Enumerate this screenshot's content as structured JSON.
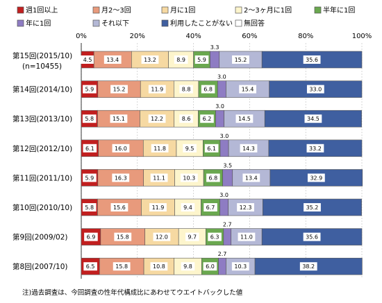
{
  "chart_data": {
    "type": "bar",
    "orientation": "horizontal",
    "stacked": true,
    "percent": true,
    "xlim": [
      0,
      100
    ],
    "x_ticks": [
      "0%",
      "20%",
      "40%",
      "60%",
      "80%",
      "100%"
    ],
    "legend_placement": "top",
    "categories": [
      [
        "第15回(2015/10)",
        "(n=10455)"
      ],
      [
        "第14回(2014/10)"
      ],
      [
        "第13回(2013/10)"
      ],
      [
        "第12回(2012/10)"
      ],
      [
        "第11回(2011/10)"
      ],
      [
        "第10回(2010/10)"
      ],
      [
        "第9回(2009/02)"
      ],
      [
        "第8回(2007/10)"
      ]
    ],
    "series": [
      {
        "name": "週1回以上",
        "color": "#c21f1f",
        "values": [
          4.5,
          5.9,
          5.8,
          6.1,
          5.9,
          5.8,
          6.9,
          6.5
        ]
      },
      {
        "name": "月2～3回",
        "color": "#e89a7c",
        "values": [
          13.4,
          15.2,
          15.1,
          16.0,
          16.3,
          15.6,
          15.8,
          15.8
        ]
      },
      {
        "name": "月に1回",
        "color": "#f6d9a2",
        "values": [
          13.2,
          11.9,
          12.2,
          11.8,
          11.1,
          11.9,
          12.0,
          10.8
        ]
      },
      {
        "name": "2～3ヶ月に1回",
        "color": "#fdf5cc",
        "values": [
          8.9,
          8.8,
          8.6,
          9.5,
          10.3,
          9.4,
          9.7,
          9.8
        ]
      },
      {
        "name": "半年に1回",
        "color": "#6aa84f",
        "values": [
          5.9,
          6.8,
          6.2,
          6.1,
          6.8,
          6.7,
          6.3,
          6.0
        ]
      },
      {
        "name": "年に1回",
        "color": "#8e7cc3",
        "values": [
          3.3,
          3.0,
          3.0,
          3.0,
          3.5,
          3.0,
          2.7,
          2.7
        ]
      },
      {
        "name": "それ以下",
        "color": "#b4b8d6",
        "values": [
          15.2,
          15.4,
          14.5,
          14.3,
          13.4,
          12.3,
          11.0,
          10.3
        ]
      },
      {
        "name": "利用したことがない",
        "color": "#3f5fa0",
        "values": [
          35.6,
          33.0,
          34.5,
          33.2,
          32.9,
          35.2,
          35.6,
          38.2
        ]
      },
      {
        "name": "無回答",
        "color": "#ffffff",
        "values": [
          0,
          0,
          0,
          0,
          0,
          0,
          0,
          0
        ]
      }
    ],
    "footnote": "注)過去調査は、今回調査の性年代構成比にあわせてウエイトバックした値"
  }
}
